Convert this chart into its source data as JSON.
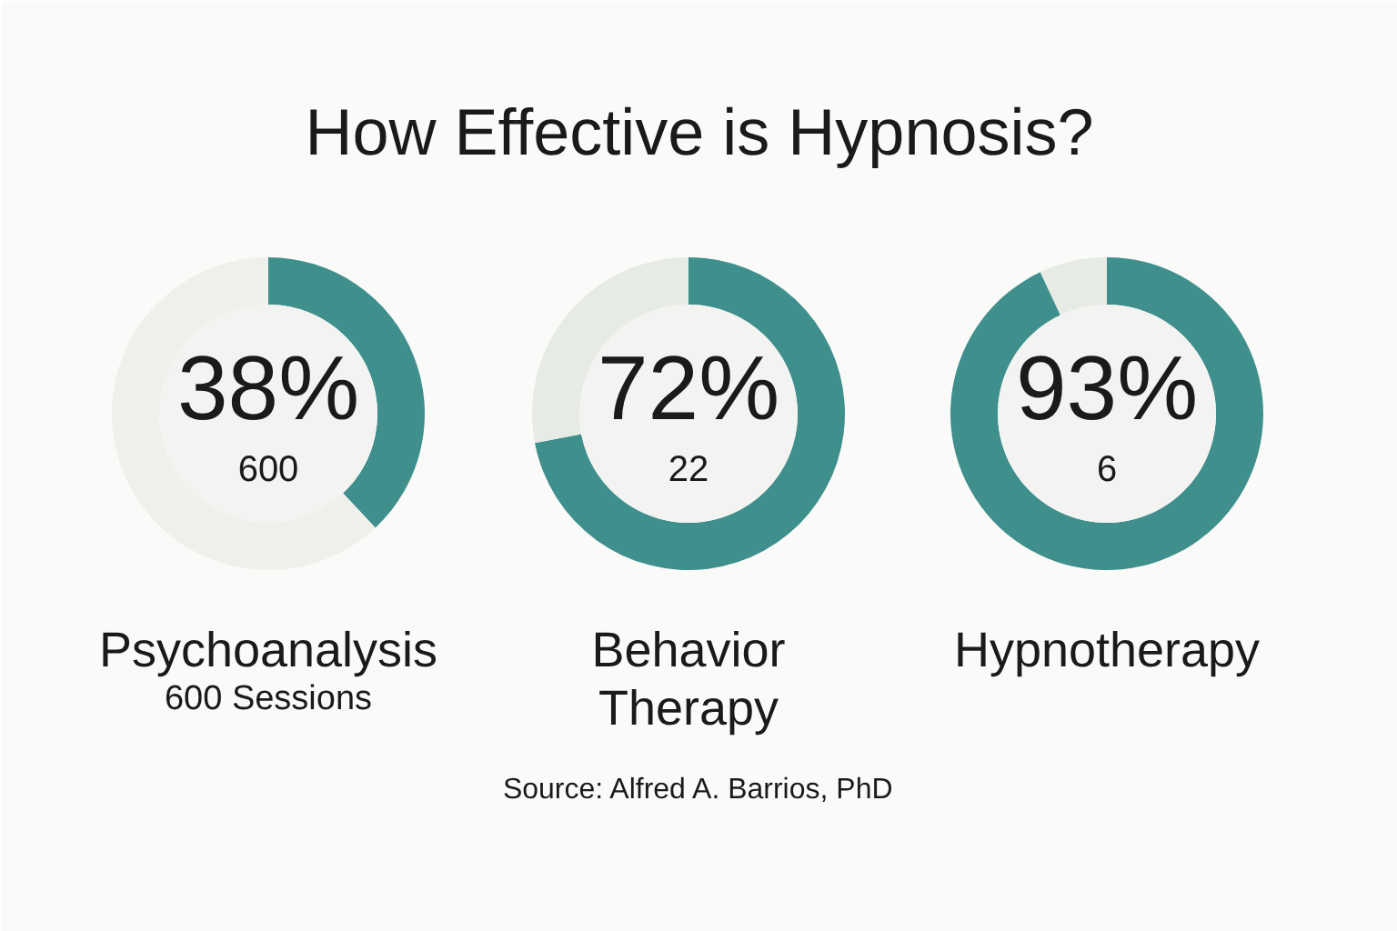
{
  "chart_data": [
    {
      "type": "donut",
      "title": "How Effective is Hypnosis?",
      "xlabel": "Psychoanalysis",
      "categories": [
        null,
        null
      ],
      "values": [
        38,
        62
      ],
      "colors": [
        "#3f8f8d",
        "#eef0ec"
      ],
      "value_labels": [
        "38%",
        null
      ],
      "annotations": [
        "600",
        "600 Sessions"
      ]
    },
    {
      "type": "donut",
      "xlabel": "Behavior Therapy",
      "categories": [
        null,
        null
      ],
      "values": [
        72,
        28
      ],
      "colors": [
        "#3f8f8d",
        "#e6ebe6"
      ],
      "value_labels": [
        "72%",
        null
      ],
      "annotations": [
        "22"
      ]
    },
    {
      "type": "donut",
      "xlabel": "Hypnotherapy",
      "categories": [
        null,
        null
      ],
      "values": [
        93,
        7
      ],
      "colors": [
        "#3f8f8d",
        "#e6ebe6"
      ],
      "value_labels": [
        "93%",
        null
      ],
      "annotations": [
        "6",
        "Source: Alfred A. Barrios, PhD"
      ]
    }
  ]
}
